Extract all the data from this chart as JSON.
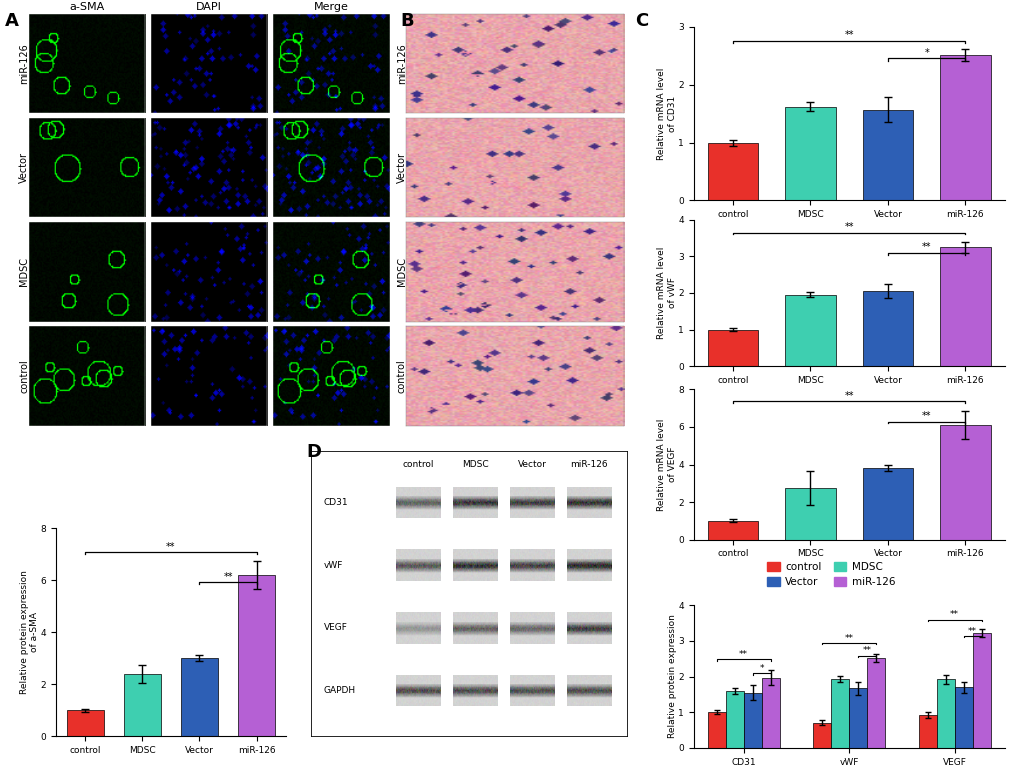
{
  "colors": {
    "control": "#e8302a",
    "MDSC": "#3ecfb0",
    "Vector": "#2d5fb5",
    "miR-126": "#b560d4"
  },
  "categories": [
    "control",
    "MDSC",
    "Vector",
    "miR-126"
  ],
  "aSMA": {
    "values": [
      1.0,
      2.4,
      3.0,
      6.2
    ],
    "errors": [
      0.05,
      0.35,
      0.12,
      0.55
    ],
    "ylabel": "Relative protein expression\nof a-SMA",
    "ylim": [
      0,
      8
    ],
    "yticks": [
      0,
      2,
      4,
      6,
      8
    ]
  },
  "CD31_mRNA": {
    "values": [
      1.0,
      1.62,
      1.57,
      2.52
    ],
    "errors": [
      0.05,
      0.08,
      0.22,
      0.1
    ],
    "ylabel": "Relative mRNA level\nof CD31",
    "ylim": [
      0,
      3
    ],
    "yticks": [
      0,
      1,
      2,
      3
    ]
  },
  "vWF_mRNA": {
    "values": [
      1.0,
      1.95,
      2.05,
      3.25
    ],
    "errors": [
      0.05,
      0.07,
      0.2,
      0.15
    ],
    "ylabel": "Relative mRNA level\nof vWF",
    "ylim": [
      0,
      4
    ],
    "yticks": [
      0,
      1,
      2,
      3,
      4
    ]
  },
  "VEGF_mRNA": {
    "values": [
      1.0,
      2.75,
      3.8,
      6.1
    ],
    "errors": [
      0.08,
      0.9,
      0.15,
      0.75
    ],
    "ylabel": "Relative mRNA level\nof VEGF",
    "ylim": [
      0,
      8
    ],
    "yticks": [
      0,
      2,
      4,
      6,
      8
    ]
  },
  "protein_grouped": {
    "CD31": {
      "values": [
        1.0,
        1.6,
        1.55,
        1.97
      ],
      "errors": [
        0.05,
        0.08,
        0.2,
        0.2
      ]
    },
    "vWF": {
      "values": [
        0.7,
        1.93,
        1.67,
        2.52
      ],
      "errors": [
        0.07,
        0.08,
        0.18,
        0.1
      ]
    },
    "VEGF": {
      "values": [
        0.92,
        1.92,
        1.7,
        3.22
      ],
      "errors": [
        0.08,
        0.12,
        0.15,
        0.12
      ]
    },
    "ylabel": "Relative protein expression",
    "ylim": [
      0,
      4
    ],
    "yticks": [
      0,
      1,
      2,
      3,
      4
    ]
  },
  "bg_color": "#ffffff",
  "bar_width": 0.65,
  "fontsize_label": 7,
  "fontsize_tick": 7,
  "panel_labels_a_rows": [
    "miR-126",
    "Vector",
    "MDSC",
    "control"
  ],
  "panel_labels_b_rows": [
    "miR-126",
    "Vector",
    "MDSC",
    "control"
  ],
  "col_labels_a": [
    "a-SMA",
    "DAPI",
    "Merge"
  ],
  "wb_rows": [
    "CD31",
    "vWF",
    "VEGF",
    "GAPDH"
  ],
  "wb_cols": [
    "control",
    "MDSC",
    "Vector",
    "miR-126"
  ]
}
